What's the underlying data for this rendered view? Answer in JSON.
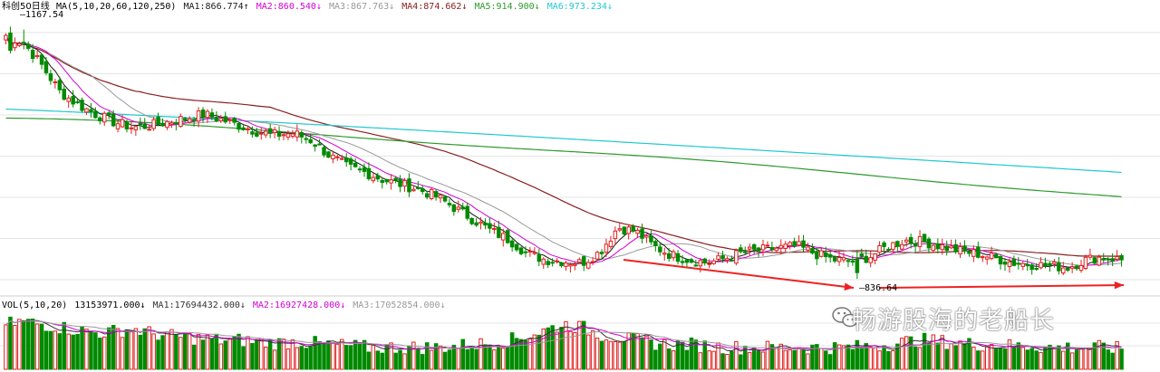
{
  "watermark": "畅游股海的老船长",
  "colors": {
    "up": "#e02020",
    "down": "#008a00",
    "ma5": "#1a1a1a",
    "ma10": "#d400d4",
    "ma20": "#999999",
    "ma60": "#8a2020",
    "ma120": "#2e9a2e",
    "ma250": "#20c8d0",
    "vol_ma1": "#333333",
    "vol_ma2": "#d400d4",
    "vol_ma3": "#999999",
    "grid": "#e6e6e6",
    "arrow": "#ee2222"
  },
  "chart_data": [
    {
      "type": "candlestick",
      "title": "科创50日线",
      "legend": [
        {
          "name": "MA",
          "value": "(5,10,20,60,120,250)",
          "arrow": ""
        },
        {
          "name": "MA1:",
          "value": "866.774",
          "arrow": "↑"
        },
        {
          "name": "MA2:",
          "value": "860.540",
          "arrow": "↓"
        },
        {
          "name": "MA3:",
          "value": "867.763",
          "arrow": "↓"
        },
        {
          "name": "MA4:",
          "value": "874.662",
          "arrow": "↓"
        },
        {
          "name": "MA5:",
          "value": "914.900",
          "arrow": "↓"
        },
        {
          "name": "MA6:",
          "value": "973.234",
          "arrow": "↓"
        }
      ],
      "annotations": [
        {
          "text": "1167.54",
          "type": "high"
        },
        {
          "text": "836.64",
          "type": "low"
        }
      ],
      "ylim": [
        820,
        1190
      ],
      "grid": true,
      "ma_levels": {
        "ma120_start": 1050,
        "ma120_end": 946,
        "ma250_start": 1062,
        "ma250_end": 978
      },
      "series_anchor_closes": [
        1160,
        1150,
        1120,
        1085,
        1068,
        1055,
        1045,
        1038,
        1040,
        1045,
        1050,
        1055,
        1048,
        1040,
        1032,
        1028,
        1030,
        1020,
        1000,
        985,
        978,
        968,
        962,
        955,
        945,
        930,
        915,
        900,
        888,
        870,
        862,
        860,
        858,
        872,
        905,
        900,
        880,
        868,
        862,
        858,
        864,
        872,
        875,
        878,
        880,
        870,
        862,
        860,
        866,
        880,
        888,
        886,
        880,
        874,
        870,
        864,
        858,
        856,
        854,
        852,
        862,
        866,
        862
      ]
    },
    {
      "type": "bar",
      "title": "VOL(5,10,20)",
      "legend": [
        {
          "name": "",
          "value": "13153971.000",
          "arrow": "↓"
        },
        {
          "name": "MA1:",
          "value": "17694432.000",
          "arrow": "↓"
        },
        {
          "name": "MA2:",
          "value": "16927428.000",
          "arrow": "↓"
        },
        {
          "name": "MA3:",
          "value": "17052854.000",
          "arrow": "↓"
        }
      ],
      "ylim": [
        0,
        40000000
      ],
      "volume_level_millions": [
        30,
        32,
        30,
        28,
        26,
        24,
        25,
        27,
        24,
        22,
        21,
        20,
        19,
        19,
        18,
        17,
        18,
        17,
        16,
        15,
        14,
        14,
        14,
        14,
        14,
        15,
        16,
        17,
        19,
        22,
        26,
        30,
        28,
        23,
        21,
        19,
        17,
        16,
        16,
        15,
        14,
        14,
        14,
        14,
        14,
        14,
        14,
        14,
        15,
        16,
        18,
        19,
        18,
        17,
        16,
        16,
        15,
        15,
        14,
        14,
        14,
        14,
        13
      ]
    }
  ]
}
